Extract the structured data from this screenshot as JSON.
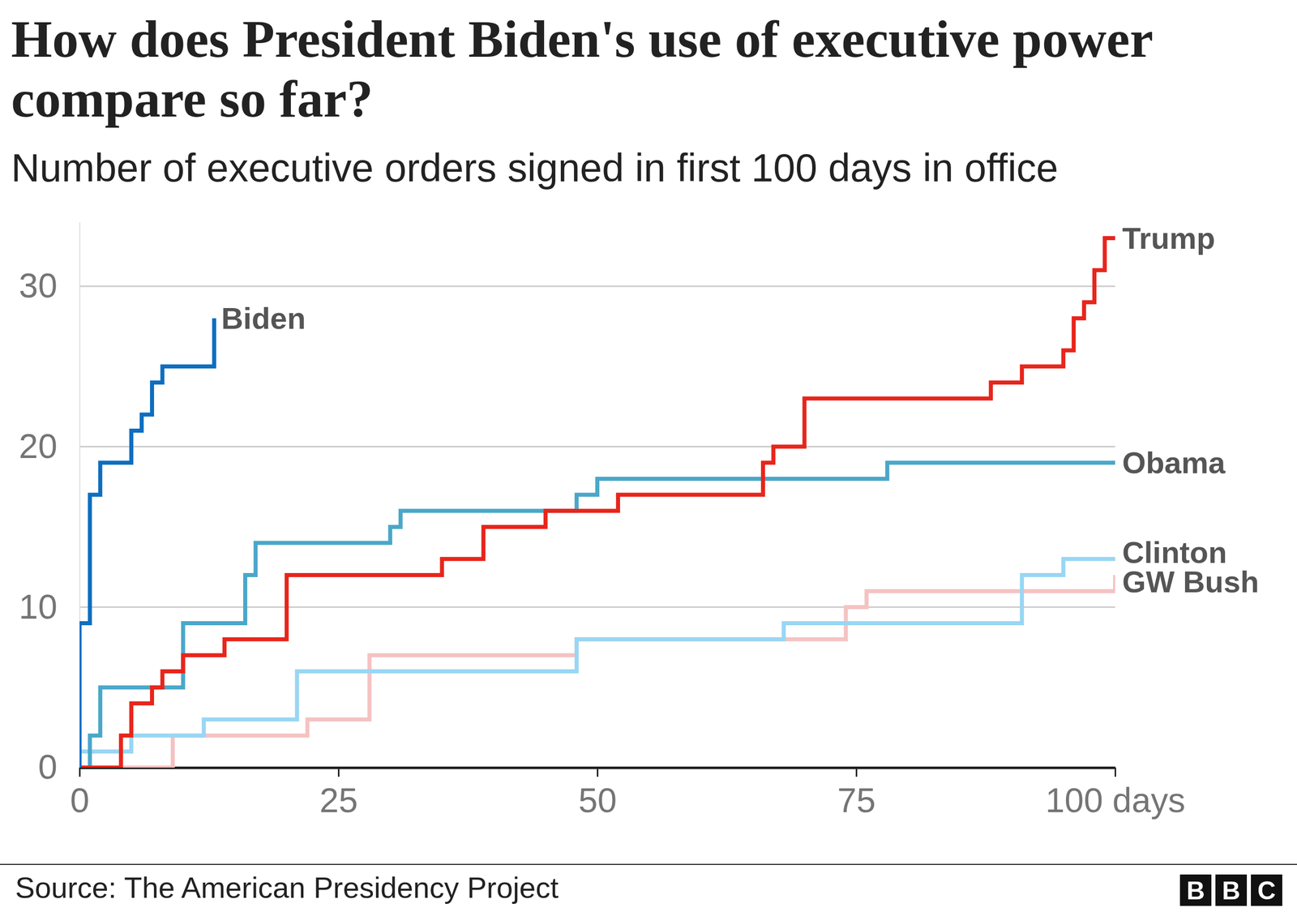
{
  "chart_data": {
    "type": "line",
    "title": "How does President Biden's use of executive power compare so far?",
    "subtitle": "Number of executive orders signed in first 100 days in office",
    "line_style": "step",
    "grid": true,
    "xlim": [
      0,
      100
    ],
    "ylim": [
      0,
      34
    ],
    "xticks": [
      0,
      25,
      50,
      75,
      {
        "value": 100,
        "label": "100 days"
      }
    ],
    "yticks": [
      0,
      10,
      20,
      30
    ],
    "series": [
      {
        "name": "GW Bush",
        "color": "#f5c2c2",
        "x": [
          0,
          9,
          22,
          28,
          48,
          74,
          76,
          100
        ],
        "values": [
          0,
          2,
          3,
          7,
          8,
          10,
          11,
          12
        ]
      },
      {
        "name": "Clinton",
        "color": "#99d6f4",
        "x": [
          0,
          5,
          12,
          21,
          48,
          68,
          91,
          95,
          100
        ],
        "values": [
          1,
          2,
          3,
          6,
          8,
          9,
          12,
          13,
          13
        ]
      },
      {
        "name": "Obama",
        "color": "#4aa7c9",
        "x": [
          0,
          1,
          2,
          10,
          16,
          17,
          30,
          31,
          48,
          50,
          78,
          100
        ],
        "values": [
          0,
          2,
          5,
          9,
          12,
          14,
          15,
          16,
          17,
          18,
          19,
          19
        ]
      },
      {
        "name": "Trump",
        "color": "#e8251b",
        "x": [
          0,
          4,
          5,
          7,
          8,
          10,
          14,
          20,
          35,
          39,
          45,
          52,
          66,
          67,
          70,
          88,
          91,
          95,
          96,
          97,
          98,
          99,
          100
        ],
        "values": [
          0,
          2,
          4,
          5,
          6,
          7,
          8,
          12,
          13,
          15,
          16,
          17,
          19,
          20,
          23,
          24,
          25,
          26,
          28,
          29,
          31,
          33,
          33
        ]
      },
      {
        "name": "Biden",
        "color": "#0d6ebf",
        "x": [
          0,
          0,
          1,
          2,
          5,
          6,
          7,
          8,
          13
        ],
        "values": [
          0,
          9,
          17,
          19,
          21,
          22,
          24,
          25,
          28
        ]
      }
    ],
    "source": "Source: The American Presidency Project",
    "logo": "BBC"
  }
}
